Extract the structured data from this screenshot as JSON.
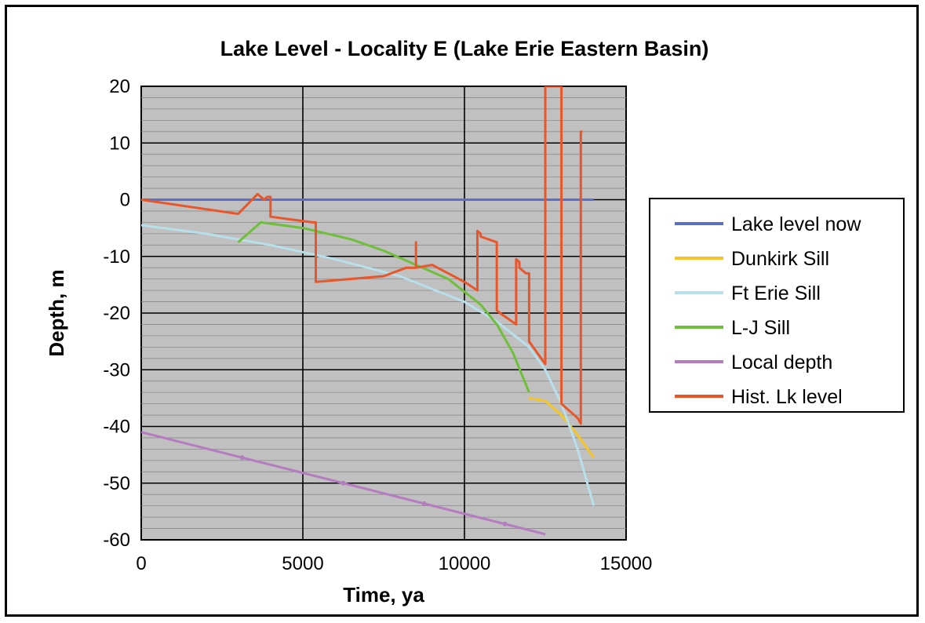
{
  "chart_data": {
    "type": "line",
    "title": "Lake Level - Locality E (Lake Erie Eastern Basin)",
    "xlabel": "Time, ya",
    "ylabel": "Depth, m",
    "xlim": [
      0,
      15000
    ],
    "ylim": [
      -60,
      20
    ],
    "x_ticks": [
      "0",
      "5000",
      "10000",
      "15000"
    ],
    "y_ticks": [
      "20",
      "10",
      "0",
      "-10",
      "-20",
      "-30",
      "-40",
      "-50",
      "-60"
    ],
    "grid": "on",
    "legend_position": "right",
    "series": [
      {
        "name": "Lake level now",
        "color": "#5a6fc8",
        "x": [
          0,
          14000
        ],
        "y": [
          0,
          0
        ]
      },
      {
        "name": "Dunkirk Sill",
        "color": "#f5c527",
        "x": [
          12000,
          12500,
          13000,
          13500,
          14000
        ],
        "y": [
          -35,
          -35.5,
          -38,
          -41.5,
          -45.5
        ]
      },
      {
        "name": "Ft Erie Sill",
        "color": "#b8e0ea",
        "x": [
          0,
          2000,
          4000,
          6000,
          8000,
          10000,
          11000,
          12000,
          12500,
          13000,
          13500,
          14000
        ],
        "y": [
          -4.5,
          -6,
          -8,
          -10.5,
          -13.5,
          -18,
          -21.5,
          -26,
          -30,
          -36,
          -44,
          -54
        ]
      },
      {
        "name": "L-J Sill",
        "color": "#6fbf3a",
        "x": [
          3000,
          3700,
          5000,
          6500,
          7500,
          8500,
          9500,
          10500,
          11000,
          11500,
          12000
        ],
        "y": [
          -7.5,
          -4,
          -5,
          -7,
          -9,
          -11.5,
          -14,
          -18.5,
          -22,
          -27,
          -34
        ]
      },
      {
        "name": "Local depth",
        "color": "#b57cc2",
        "x": [
          0,
          12500
        ],
        "y": [
          -41,
          -59
        ]
      },
      {
        "name": "Hist. Lk level",
        "color": "#e8562a",
        "x": [
          0,
          3000,
          3600,
          3800,
          3900,
          4000,
          4000,
          5300,
          5400,
          5400,
          7500,
          8200,
          8500,
          8500,
          8500,
          9000,
          10000,
          10400,
          10400,
          10500,
          10500,
          11000,
          11000,
          11100,
          11600,
          11600,
          11700,
          11700,
          11900,
          12000,
          12000,
          12500,
          12500,
          12500,
          12550,
          13000,
          13000,
          13000,
          13100,
          13500,
          13600,
          13600,
          13600,
          13650
        ],
        "y": [
          0,
          -2.5,
          1,
          0,
          0.5,
          0.5,
          -3,
          -4,
          -4,
          -14.5,
          -13.5,
          -12,
          -12,
          -7.5,
          -12,
          -11.5,
          -14.5,
          -16,
          -5.5,
          -6,
          -6.5,
          -7.5,
          -19.5,
          -20,
          -22,
          -10.5,
          -11,
          -12,
          -13,
          -13,
          -25,
          -29,
          20,
          20,
          20,
          20,
          -36,
          -36,
          -36.5,
          -38.5,
          -39.5,
          12,
          12,
          12
        ]
      }
    ]
  }
}
